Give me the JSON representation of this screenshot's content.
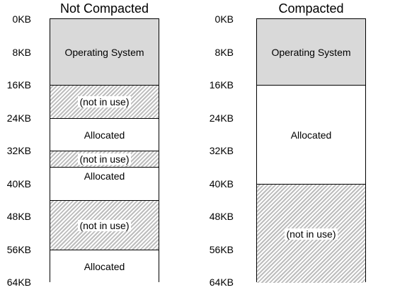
{
  "left": {
    "title": "Not Compacted",
    "ticks": [
      "0KB",
      "8KB",
      "16KB",
      "24KB",
      "32KB",
      "40KB",
      "48KB",
      "56KB",
      "64KB"
    ],
    "segments": [
      {
        "label": "Operating System",
        "kind": "os",
        "from_kb": 0,
        "to_kb": 16
      },
      {
        "label": "(not in use)",
        "kind": "free",
        "from_kb": 16,
        "to_kb": 24
      },
      {
        "label": "Allocated",
        "kind": "allocated",
        "from_kb": 24,
        "to_kb": 32
      },
      {
        "label": "(not in use)",
        "kind": "free",
        "from_kb": 32,
        "to_kb": 36
      },
      {
        "label": "Allocated",
        "kind": "allocated",
        "from_kb": 36,
        "to_kb": 44
      },
      {
        "label": "(not in use)",
        "kind": "free",
        "from_kb": 44,
        "to_kb": 56
      },
      {
        "label": "Allocated",
        "kind": "allocated",
        "from_kb": 56,
        "to_kb": 64
      }
    ]
  },
  "right": {
    "title": "Compacted",
    "ticks": [
      "0KB",
      "8KB",
      "16KB",
      "24KB",
      "32KB",
      "40KB",
      "48KB",
      "56KB",
      "64KB"
    ],
    "segments": [
      {
        "label": "Operating System",
        "kind": "os",
        "from_kb": 0,
        "to_kb": 16
      },
      {
        "label": "Allocated",
        "kind": "allocated",
        "from_kb": 16,
        "to_kb": 40
      },
      {
        "label": "(not in use)",
        "kind": "free",
        "from_kb": 40,
        "to_kb": 64
      }
    ]
  },
  "colors": {
    "os": "#d9d9d9",
    "allocated": "#ffffff",
    "free_hatch": "#bdbdbd",
    "border": "#000000"
  }
}
